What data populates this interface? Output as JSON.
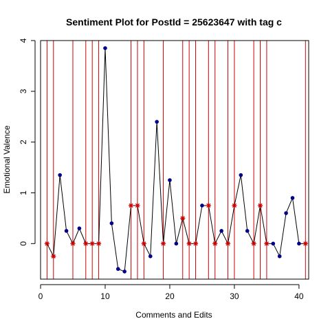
{
  "chart_data": {
    "type": "line",
    "title": "Sentiment Plot for PostId =  25623647  with tag  c",
    "xlabel": "Comments and Edits",
    "ylabel": "Emotional Valence",
    "xlim": [
      0,
      41.5
    ],
    "ylim": [
      -0.7,
      4.0
    ],
    "xticks": [
      0,
      10,
      20,
      30,
      40
    ],
    "yticks": [
      0,
      1,
      2,
      3,
      4
    ],
    "grid": false,
    "line_color": "#000000",
    "comment_point_color": "#00008B",
    "edit_point_color": "#CC0000",
    "edit_line_color": "#CC0000",
    "x": [
      1,
      2,
      3,
      4,
      5,
      6,
      7,
      8,
      9,
      10,
      11,
      12,
      13,
      14,
      15,
      16,
      17,
      18,
      19,
      20,
      21,
      22,
      23,
      24,
      25,
      26,
      27,
      28,
      29,
      30,
      31,
      32,
      33,
      34,
      35,
      36,
      37,
      38,
      39,
      40,
      41
    ],
    "y": [
      0,
      -0.25,
      1.35,
      0.25,
      0,
      0.3,
      0,
      0,
      0,
      3.85,
      0.4,
      -0.5,
      -0.55,
      0.75,
      0.75,
      0,
      -0.25,
      2.4,
      0,
      1.25,
      0,
      0.5,
      0,
      0,
      0.75,
      0.75,
      0,
      0.25,
      0,
      0.75,
      1.35,
      0.25,
      0,
      0.75,
      0,
      0,
      -0.25,
      0.6,
      0.9,
      0,
      0
    ],
    "edits": [
      1,
      2,
      5,
      7,
      8,
      9,
      14,
      15,
      16,
      19,
      22,
      23,
      24,
      26,
      27,
      29,
      30,
      33,
      34,
      35,
      41
    ]
  }
}
